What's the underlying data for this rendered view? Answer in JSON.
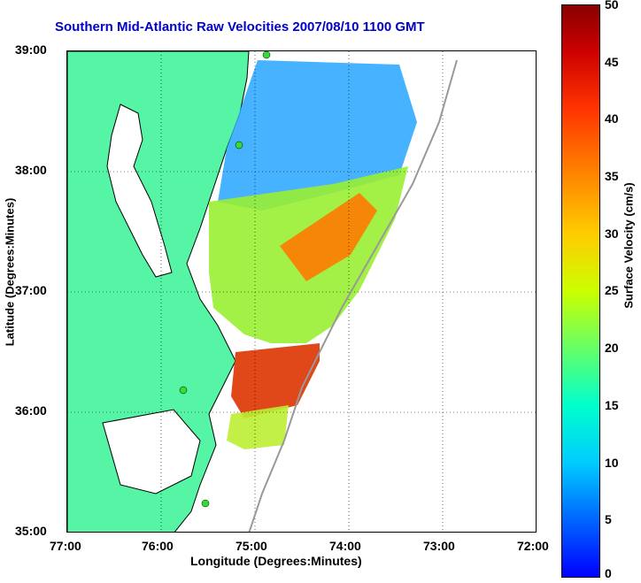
{
  "title": "Southern Mid-Atlantic Raw Velocities 2007/08/10 1100 GMT",
  "axes": {
    "xlabel": "Longitude (Degrees:Minutes)",
    "ylabel": "Latitude (Degrees:Minutes)",
    "xticks": [
      "77:00",
      "76:00",
      "75:00",
      "74:00",
      "73:00",
      "72:00"
    ],
    "yticks": [
      "39:00",
      "38:00",
      "37:00",
      "36:00",
      "35:00"
    ]
  },
  "colorbar": {
    "label": "Surface Velocity (cm/s)",
    "ticks": [
      "50",
      "45",
      "40",
      "35",
      "30",
      "25",
      "20",
      "15",
      "10",
      "5",
      "0"
    ],
    "range": [
      0,
      50
    ]
  },
  "colors": {
    "land": "#55f5a5",
    "water": "#ffffff",
    "station": "#33dd33",
    "title": "#0000cc",
    "bathymetry": "#999999"
  }
}
